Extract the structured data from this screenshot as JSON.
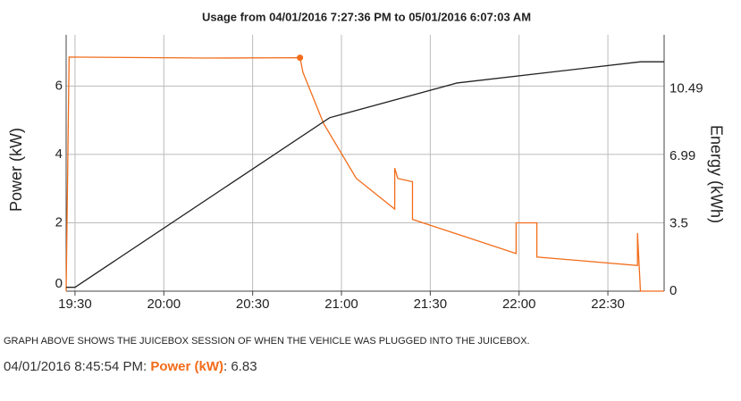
{
  "chart_data": {
    "type": "line",
    "title": "Usage from 04/01/2016 7:27:36 PM to 05/01/2016 6:07:03 AM",
    "ylabel": "Power (kW)",
    "y2label": "Energy (kWh)",
    "xlim": [
      "19:27",
      "22:49"
    ],
    "xticks": [
      "19:30",
      "20:00",
      "20:30",
      "21:00",
      "21:30",
      "22:00",
      "22:30"
    ],
    "ylim": [
      0,
      7.5
    ],
    "yticks": [
      0,
      2,
      4,
      6
    ],
    "y2lim": [
      0,
      13.3
    ],
    "y2ticks": [
      0,
      3.5,
      6.99,
      10.49
    ],
    "grid": true,
    "series": [
      {
        "color": "#f26c1a",
        "x": [
          "19:27",
          "19:28",
          "20:15",
          "20:46",
          "20:47",
          "20:54",
          "21:05",
          "21:18",
          "21:18",
          "21:19",
          "21:24",
          "21:24",
          "21:59",
          "21:59",
          "22:06",
          "22:06",
          "22:40",
          "22:40",
          "22:41",
          "22:49"
        ],
        "values": [
          0,
          6.85,
          6.82,
          6.83,
          6.4,
          4.9,
          3.3,
          2.4,
          3.6,
          3.3,
          3.2,
          2.1,
          1.1,
          2.0,
          2.0,
          1.0,
          0.75,
          1.7,
          0,
          0
        ]
      },
      {
        "color": "#222222",
        "axis": "y2",
        "x": [
          "19:27",
          "19:30",
          "20:56",
          "21:39",
          "22:41",
          "22:49"
        ],
        "values": [
          0.2,
          0.2,
          9.0,
          10.8,
          11.9,
          11.9
        ]
      }
    ],
    "caption": "GRAPH ABOVE SHOWS THE JUICEBOX SESSION OF WHEN THE VEHICLE WAS PLUGGED INTO THE JUICEBOX.",
    "tooltip": {
      "time": "04/01/2016 8:45:54 PM",
      "label": "Power (kW)",
      "value": 6.83,
      "point": 3
    }
  }
}
